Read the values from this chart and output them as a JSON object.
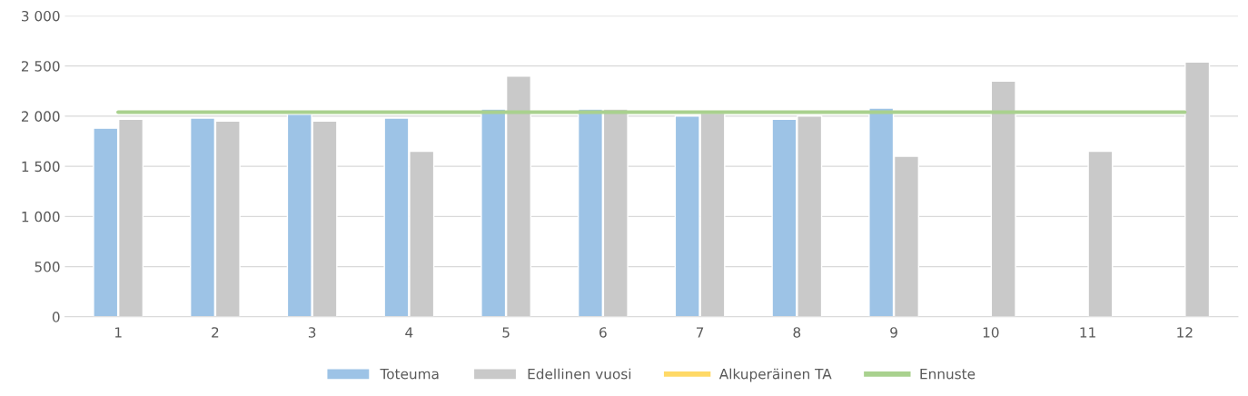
{
  "chart_data": {
    "type": "bar",
    "categories": [
      "1",
      "2",
      "3",
      "4",
      "5",
      "6",
      "7",
      "8",
      "9",
      "10",
      "11",
      "12"
    ],
    "series": [
      {
        "name": "Toteuma",
        "color": "#9dc3e6",
        "values": [
          1880,
          1980,
          2020,
          1980,
          2070,
          2070,
          2000,
          1970,
          2080,
          null,
          null,
          null
        ]
      },
      {
        "name": "Edellinen vuosi",
        "color": "#c9c9c9",
        "values": [
          1970,
          1950,
          1950,
          1650,
          2400,
          2070,
          2030,
          2000,
          1600,
          2350,
          1650,
          2540
        ]
      },
      {
        "name": "Alkuperäinen TA",
        "type": "line",
        "color": "#ffd966",
        "values": [
          null,
          null,
          null,
          null,
          null,
          null,
          null,
          null,
          null,
          null,
          null,
          null
        ]
      },
      {
        "name": "Ennuste",
        "type": "line",
        "color": "#a9d18e",
        "values": [
          2040,
          2040,
          2040,
          2040,
          2040,
          2040,
          2040,
          2040,
          2040,
          2040,
          2040,
          2040
        ]
      }
    ],
    "ylim": [
      0,
      3000
    ],
    "yticks": [
      {
        "value": 0,
        "label": "0"
      },
      {
        "value": 500,
        "label": "500"
      },
      {
        "value": 1000,
        "label": "1 000"
      },
      {
        "value": 1500,
        "label": "1 500"
      },
      {
        "value": 2000,
        "label": "2 000"
      },
      {
        "value": 2500,
        "label": "2 500"
      },
      {
        "value": 3000,
        "label": "3 000"
      }
    ],
    "grid": "y",
    "legend": "bottom",
    "marker": "none",
    "line_style": "solid"
  }
}
